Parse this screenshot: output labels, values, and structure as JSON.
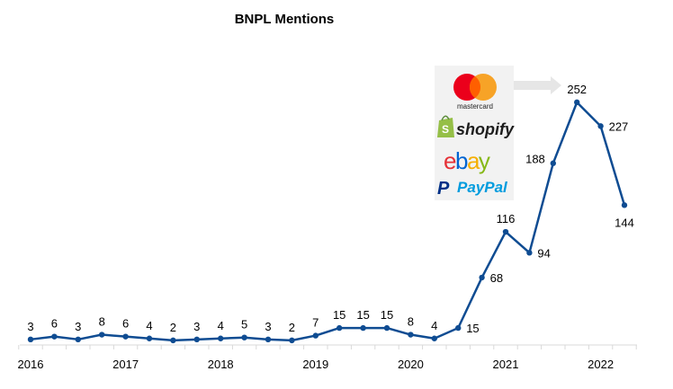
{
  "chart_data": {
    "type": "line",
    "title": "BNPL Mentions",
    "xlabel": "",
    "ylabel": "",
    "ylim": [
      0,
      270
    ],
    "x_tick_labels": [
      "2016",
      "2017",
      "2018",
      "2019",
      "2020",
      "2021",
      "2022"
    ],
    "series": [
      {
        "name": "",
        "color": "#0f4c92",
        "values": [
          3,
          6,
          3,
          8,
          6,
          4,
          2,
          3,
          4,
          5,
          3,
          2,
          7,
          15,
          15,
          15,
          8,
          4,
          15,
          68,
          116,
          94,
          188,
          252,
          227,
          144
        ]
      }
    ],
    "grid": false,
    "legend": "none",
    "annotation": {
      "logos": [
        {
          "name": "mastercard",
          "text": "mastercard",
          "icon": "mastercard-logo"
        },
        {
          "name": "shopify",
          "text": "shopify",
          "icon": "shopify-bag-icon"
        },
        {
          "name": "ebay",
          "text": "ebay",
          "icon": "ebay-logo"
        },
        {
          "name": "paypal",
          "text": "PayPal",
          "icon": "paypal-logo"
        }
      ],
      "arrow_color": "#e6e6e6",
      "box_color": "#f2f2f2"
    }
  }
}
